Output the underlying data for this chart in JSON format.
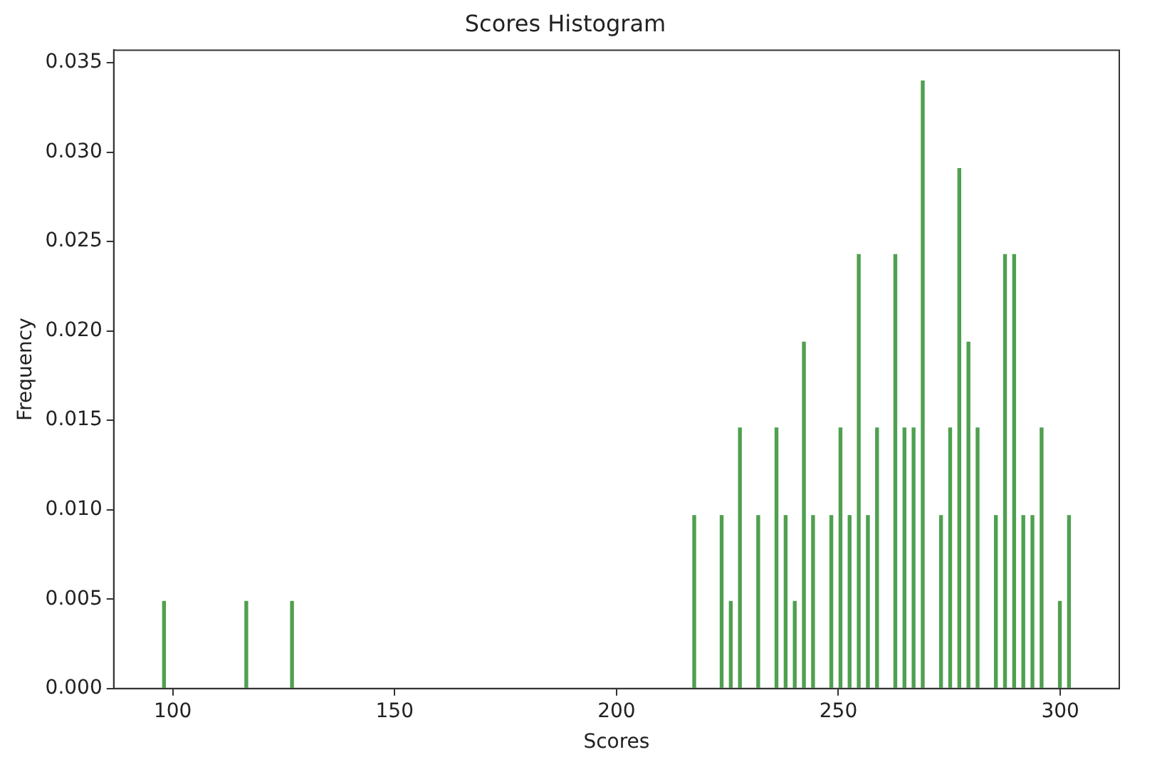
{
  "chart_data": {
    "type": "histogram",
    "title": "Scores Histogram",
    "xlabel": "Scores",
    "ylabel": "Frequency",
    "color": "#4fa04f",
    "bins": [
      97,
      99.06,
      101.12,
      103.18,
      105.24,
      107.3,
      109.36,
      111.42,
      113.48,
      115.54,
      117.6,
      119.66,
      121.72,
      123.78,
      125.84,
      127.9,
      129.96,
      132.02,
      134.08,
      136.14,
      138.2,
      140.26,
      142.32,
      144.38,
      146.44,
      148.5,
      150.56,
      152.62,
      154.68,
      156.74,
      158.8,
      160.86,
      162.92,
      164.98,
      167.04,
      169.1,
      171.16,
      173.22,
      175.28,
      177.34,
      179.4,
      181.46,
      183.52,
      185.58,
      187.64,
      189.7,
      191.76,
      193.82,
      195.88,
      197.94,
      200,
      202.06,
      204.12,
      206.18,
      208.24,
      210.3,
      212.36,
      214.42,
      216.48,
      218.54,
      220.6,
      222.66,
      224.72,
      226.78,
      228.84,
      230.9,
      232.96,
      235.02,
      237.08,
      239.14,
      241.2,
      243.26,
      245.32,
      247.38,
      249.44,
      251.5,
      253.56,
      255.62,
      257.68,
      259.74,
      261.8,
      263.86,
      265.92,
      267.98,
      270.04,
      272.1,
      274.16,
      276.22,
      278.28,
      280.34,
      282.4,
      284.46,
      286.52,
      288.58,
      290.64,
      292.7,
      294.76,
      296.82,
      298.88,
      300.94,
      303
    ],
    "values": [
      0.0049,
      0,
      0,
      0,
      0,
      0,
      0,
      0,
      0,
      0.0049,
      0,
      0,
      0,
      0,
      0.0049,
      0,
      0,
      0,
      0,
      0,
      0,
      0,
      0,
      0,
      0,
      0,
      0,
      0,
      0,
      0,
      0,
      0,
      0,
      0,
      0,
      0,
      0,
      0,
      0,
      0,
      0,
      0,
      0,
      0,
      0,
      0,
      0,
      0,
      0,
      0,
      0,
      0,
      0,
      0,
      0,
      0,
      0,
      0,
      0.0097,
      0,
      0,
      0.0097,
      0.0049,
      0.0146,
      0,
      0.0097,
      0,
      0.0146,
      0.0097,
      0.0049,
      0.0194,
      0.0097,
      0,
      0.0097,
      0.0146,
      0.0097,
      0.0243,
      0.0097,
      0.0146,
      0,
      0.0243,
      0.0146,
      0.0146,
      0.034,
      0,
      0.0097,
      0.0146,
      0.0291,
      0.0194,
      0.0146,
      0,
      0.0097,
      0.0243,
      0.0243,
      0.0097,
      0.0097,
      0.0146,
      0,
      0.0049,
      0.0097
    ],
    "xlim": [
      86.7,
      313.3
    ],
    "xticks": [
      100,
      150,
      200,
      250,
      300
    ],
    "ylim": [
      0,
      0.0357
    ],
    "yticks": [
      {
        "value": 0,
        "label": "0.000"
      },
      {
        "value": 0.005,
        "label": "0.005"
      },
      {
        "value": 0.01,
        "label": "0.010"
      },
      {
        "value": 0.015,
        "label": "0.015"
      },
      {
        "value": 0.02,
        "label": "0.020"
      },
      {
        "value": 0.025,
        "label": "0.025"
      },
      {
        "value": 0.03,
        "label": "0.030"
      },
      {
        "value": 0.035,
        "label": "0.035"
      }
    ],
    "grid": false,
    "legend": false
  }
}
